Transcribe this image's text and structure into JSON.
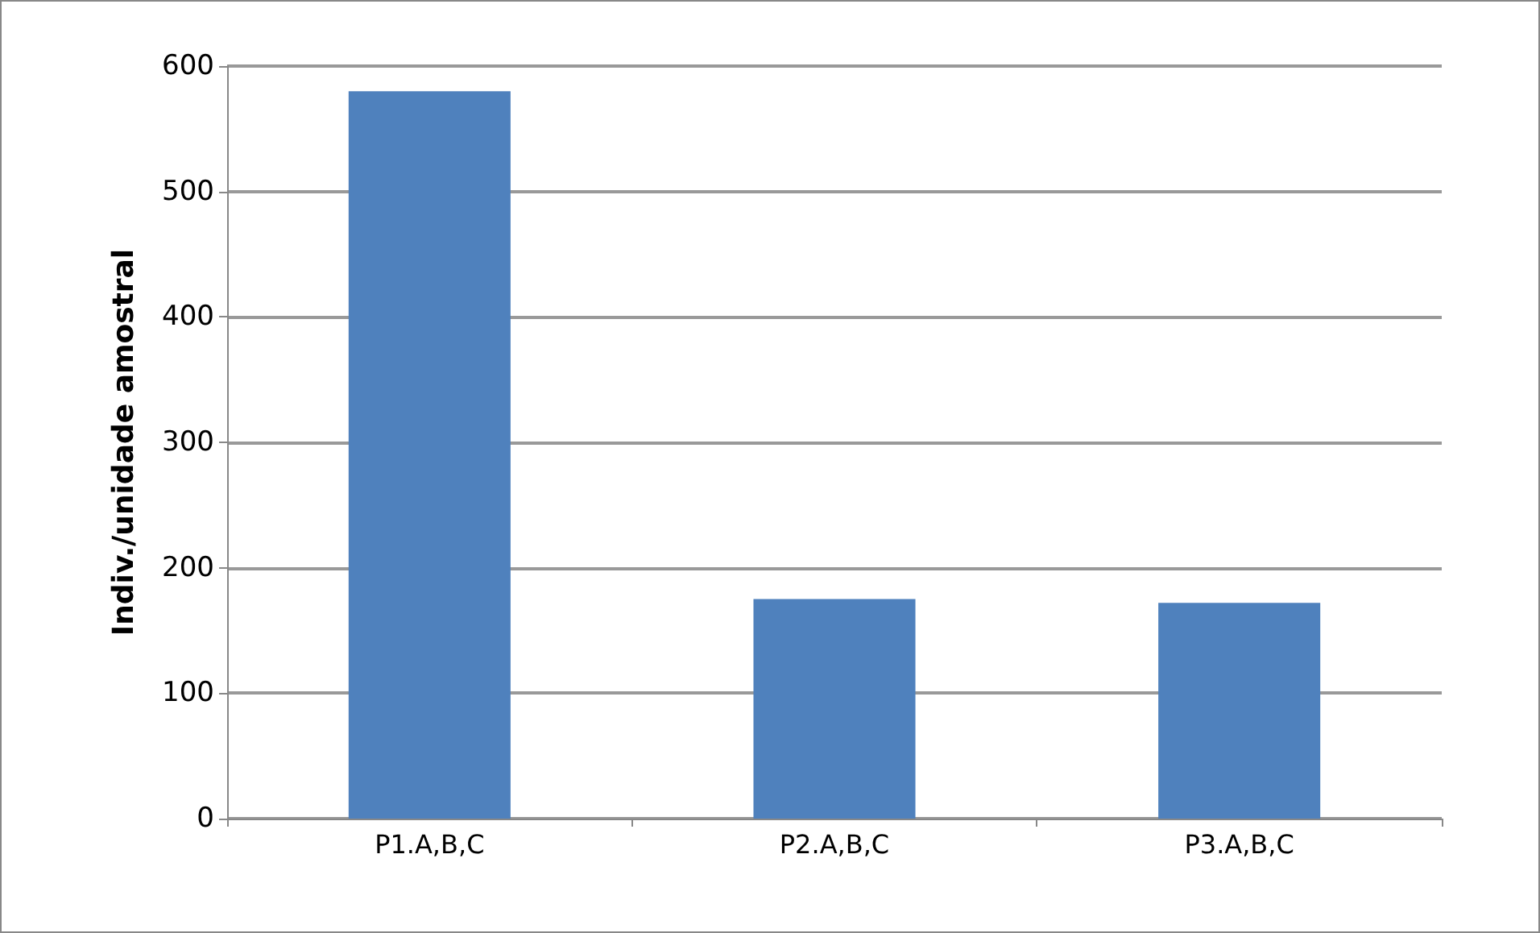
{
  "chart_data": {
    "type": "bar",
    "ylabel": "Indiv./unidade amostral",
    "categories": [
      "P1.A,B,C",
      "P2.A,B,C",
      "P3.A,B,C"
    ],
    "values": [
      580,
      175,
      172
    ],
    "color": "#4f81bd",
    "ylim": [
      0,
      600
    ],
    "yticks": [
      0,
      100,
      200,
      300,
      400,
      500,
      600
    ],
    "grid": "y"
  }
}
